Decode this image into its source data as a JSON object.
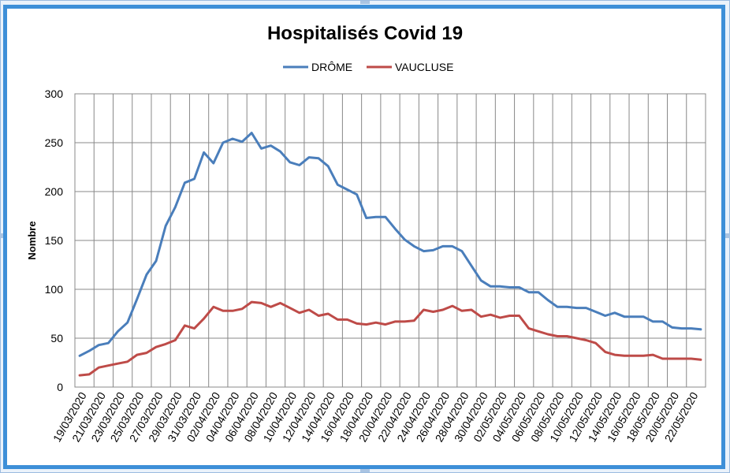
{
  "chart_data": {
    "type": "line",
    "title": "Hospitalisés Covid 19",
    "ylabel": "Nombre",
    "xlabel": "",
    "ylim": [
      0,
      300
    ],
    "yticks": [
      0,
      50,
      100,
      150,
      200,
      250,
      300
    ],
    "grid": true,
    "legend_position": "top-center",
    "x": [
      "19/03/2020",
      "20/03/2020",
      "21/03/2020",
      "22/03/2020",
      "23/03/2020",
      "24/03/2020",
      "25/03/2020",
      "26/03/2020",
      "27/03/2020",
      "28/03/2020",
      "29/03/2020",
      "30/03/2020",
      "31/03/2020",
      "01/04/2020",
      "02/04/2020",
      "03/04/2020",
      "04/04/2020",
      "05/04/2020",
      "06/04/2020",
      "07/04/2020",
      "08/04/2020",
      "09/04/2020",
      "10/04/2020",
      "11/04/2020",
      "12/04/2020",
      "13/04/2020",
      "14/04/2020",
      "15/04/2020",
      "16/04/2020",
      "17/04/2020",
      "18/04/2020",
      "19/04/2020",
      "20/04/2020",
      "21/04/2020",
      "22/04/2020",
      "23/04/2020",
      "24/04/2020",
      "25/04/2020",
      "26/04/2020",
      "27/04/2020",
      "28/04/2020",
      "29/04/2020",
      "30/04/2020",
      "01/05/2020",
      "02/05/2020",
      "03/05/2020",
      "04/05/2020",
      "05/05/2020",
      "06/05/2020",
      "07/05/2020",
      "08/05/2020",
      "09/05/2020",
      "10/05/2020",
      "11/05/2020",
      "12/05/2020",
      "13/05/2020",
      "14/05/2020",
      "15/05/2020",
      "16/05/2020",
      "17/05/2020",
      "18/05/2020",
      "19/05/2020",
      "20/05/2020",
      "21/05/2020",
      "22/05/2020",
      "23/05/2020"
    ],
    "xtick_labels": [
      "19/03/2020",
      "21/03/2020",
      "23/03/2020",
      "25/03/2020",
      "27/03/2020",
      "29/03/2020",
      "31/03/2020",
      "02/04/2020",
      "04/04/2020",
      "06/04/2020",
      "08/04/2020",
      "10/04/2020",
      "12/04/2020",
      "14/04/2020",
      "16/04/2020",
      "18/04/2020",
      "20/04/2020",
      "22/04/2020",
      "24/04/2020",
      "26/04/2020",
      "28/04/2020",
      "30/04/2020",
      "02/05/2020",
      "04/05/2020",
      "06/05/2020",
      "08/05/2020",
      "10/05/2020",
      "12/05/2020",
      "14/05/2020",
      "16/05/2020",
      "18/05/2020",
      "20/05/2020",
      "22/05/2020"
    ],
    "series": [
      {
        "name": "DRÔME",
        "color": "#4a7ebb",
        "values": [
          32,
          37,
          43,
          45,
          57,
          66,
          90,
          115,
          129,
          165,
          184,
          209,
          213,
          240,
          229,
          250,
          254,
          251,
          260,
          244,
          247,
          241,
          230,
          227,
          235,
          234,
          226,
          207,
          202,
          197,
          173,
          174,
          174,
          162,
          151,
          144,
          139,
          140,
          144,
          144,
          139,
          124,
          109,
          103,
          103,
          102,
          102,
          97,
          97,
          89,
          82,
          82,
          81,
          81,
          77,
          73,
          76,
          72,
          72,
          72,
          67,
          67,
          61,
          60,
          60,
          59
        ]
      },
      {
        "name": "VAUCLUSE",
        "color": "#be4b48",
        "values": [
          12,
          13,
          20,
          22,
          24,
          26,
          33,
          35,
          41,
          44,
          48,
          63,
          60,
          70,
          82,
          78,
          78,
          80,
          87,
          86,
          82,
          86,
          81,
          76,
          79,
          73,
          75,
          69,
          69,
          65,
          64,
          66,
          64,
          67,
          67,
          68,
          79,
          77,
          79,
          83,
          78,
          79,
          72,
          74,
          71,
          73,
          73,
          60,
          57,
          54,
          52,
          52,
          50,
          48,
          45,
          36,
          33,
          32,
          32,
          32,
          33,
          29,
          29,
          29,
          29,
          28
        ]
      }
    ]
  }
}
